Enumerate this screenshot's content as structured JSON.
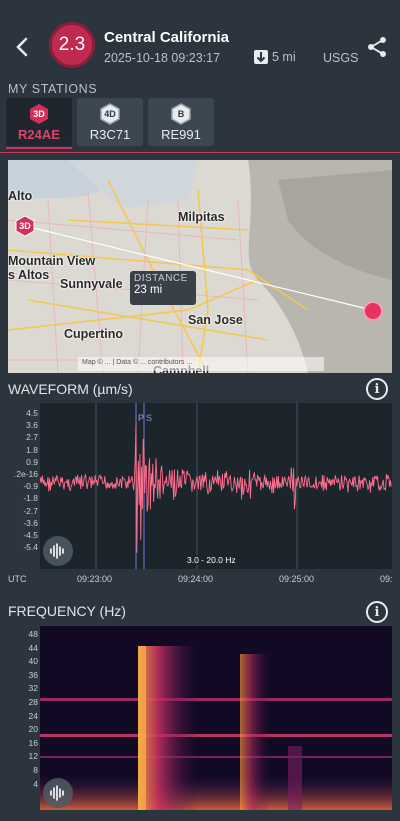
{
  "header": {
    "magnitude": "2.3",
    "title": "Central California",
    "datetime": "2025-10-18 09:23:17",
    "distance": "5 mi",
    "source": "USGS"
  },
  "stations_section": {
    "label": "MY STATIONS",
    "items": [
      {
        "badge": "3D",
        "label": "R24AE",
        "active": true
      },
      {
        "badge": "4D",
        "label": "R3C71",
        "active": false
      },
      {
        "badge": "B",
        "label": "RE991",
        "active": false
      }
    ]
  },
  "map": {
    "places": [
      "Alto",
      "Milpitas",
      "Mountain View",
      "Sunnyvale",
      "s Altos",
      "Cupertino",
      "San Jose",
      "Campbell"
    ],
    "station_badge": "3D",
    "distance_label": "DISTANCE",
    "distance_value": "23 mi",
    "attribution": "Map © ... | Data © ... contributors ..."
  },
  "waveform": {
    "title": "WAVEFORM (µm/s)",
    "y_ticks": [
      "4.5",
      "3.6",
      "2.7",
      "1.8",
      "0.9",
      ".2e-16",
      "-0.9",
      "-1.8",
      "-2.7",
      "-3.6",
      "-4.5",
      "-5.4"
    ],
    "x_ticks": [
      "UTC",
      "09:23:00",
      "09:24:00",
      "09:25:00",
      "09:"
    ],
    "filter": "3.0 - 20.0 Hz",
    "phase_p": "P",
    "phase_s": "S",
    "line_color": "#ff6f8f"
  },
  "frequency": {
    "title": "FREQUENCY (Hz)",
    "y_ticks": [
      "48",
      "44",
      "40",
      "36",
      "32",
      "28",
      "24",
      "20",
      "16",
      "12",
      "8",
      "4"
    ]
  },
  "colors": {
    "accent": "#d6305a",
    "background": "#2c343d",
    "plot_bg": "#1d252c"
  }
}
